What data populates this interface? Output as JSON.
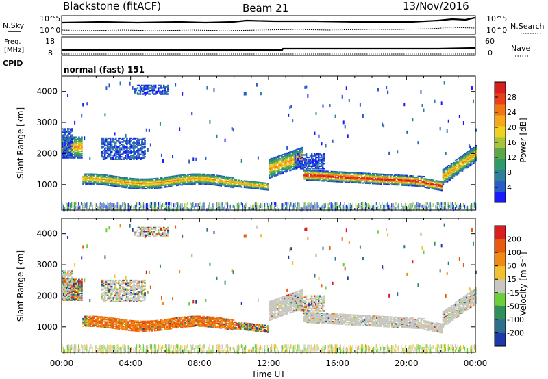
{
  "header": {
    "station": "Blackstone (fitACF)",
    "beam": "Beam 21",
    "date": "13/Nov/2016"
  },
  "top_panels": {
    "nsky_label": "N.Sky",
    "nsky_ticks": [
      "10^5",
      "10^0"
    ],
    "nsearch_label": "N.Search",
    "nsearch_ticks": [
      "10^5",
      "10^0"
    ],
    "freq_label_1": "Freq.",
    "freq_label_2": "[MHz]",
    "freq_ticks": [
      "18",
      "8"
    ],
    "nave_label": "Nave",
    "nave_ticks": [
      "60",
      "0"
    ],
    "cpid_label": "CPID",
    "cpid_value": "normal (fast) 151"
  },
  "chart_data": [
    {
      "type": "heatmap",
      "name": "power",
      "ylabel": "Slant Range [km]",
      "xlabel": "Time UT",
      "x_ticks": [
        "00:00",
        "04:00",
        "08:00",
        "12:00",
        "16:00",
        "20:00",
        "00:00"
      ],
      "x_range_hours": [
        0,
        24
      ],
      "y_ticks": [
        "1000",
        "2000",
        "3000",
        "4000"
      ],
      "y_range_km": [
        180,
        4500
      ],
      "colorbar": {
        "label": "Power [dB]",
        "ticks": [
          "28",
          "24",
          "20",
          "16",
          "12",
          "8",
          "4"
        ],
        "range": [
          0,
          32
        ],
        "colors": [
          "#1a1aff",
          "#2a5cc8",
          "#2f7f9a",
          "#2e9a6a",
          "#5aa84a",
          "#a7c43a",
          "#f0d020",
          "#f5a81a",
          "#f07814",
          "#e8401a",
          "#d81e1e"
        ]
      }
    },
    {
      "type": "heatmap",
      "name": "velocity",
      "ylabel": "Slant Range [km]",
      "xlabel": "Time UT",
      "x_ticks": [
        "00:00",
        "04:00",
        "08:00",
        "12:00",
        "16:00",
        "20:00",
        "00:00"
      ],
      "x_range_hours": [
        0,
        24
      ],
      "y_ticks": [
        "1000",
        "2000",
        "3000",
        "4000"
      ],
      "y_range_km": [
        180,
        4500
      ],
      "colorbar": {
        "label": "Velocity [m s⁻¹]",
        "ticks": [
          "200",
          "100",
          "50",
          "15",
          "-15",
          "-50",
          "-100",
          "-200"
        ],
        "colors": [
          "#1c3aa8",
          "#2f6f8c",
          "#2e8f5a",
          "#6ccf3a",
          "#c8c8c0",
          "#f2c030",
          "#f08a14",
          "#e85a10",
          "#d81e1e"
        ]
      }
    }
  ]
}
